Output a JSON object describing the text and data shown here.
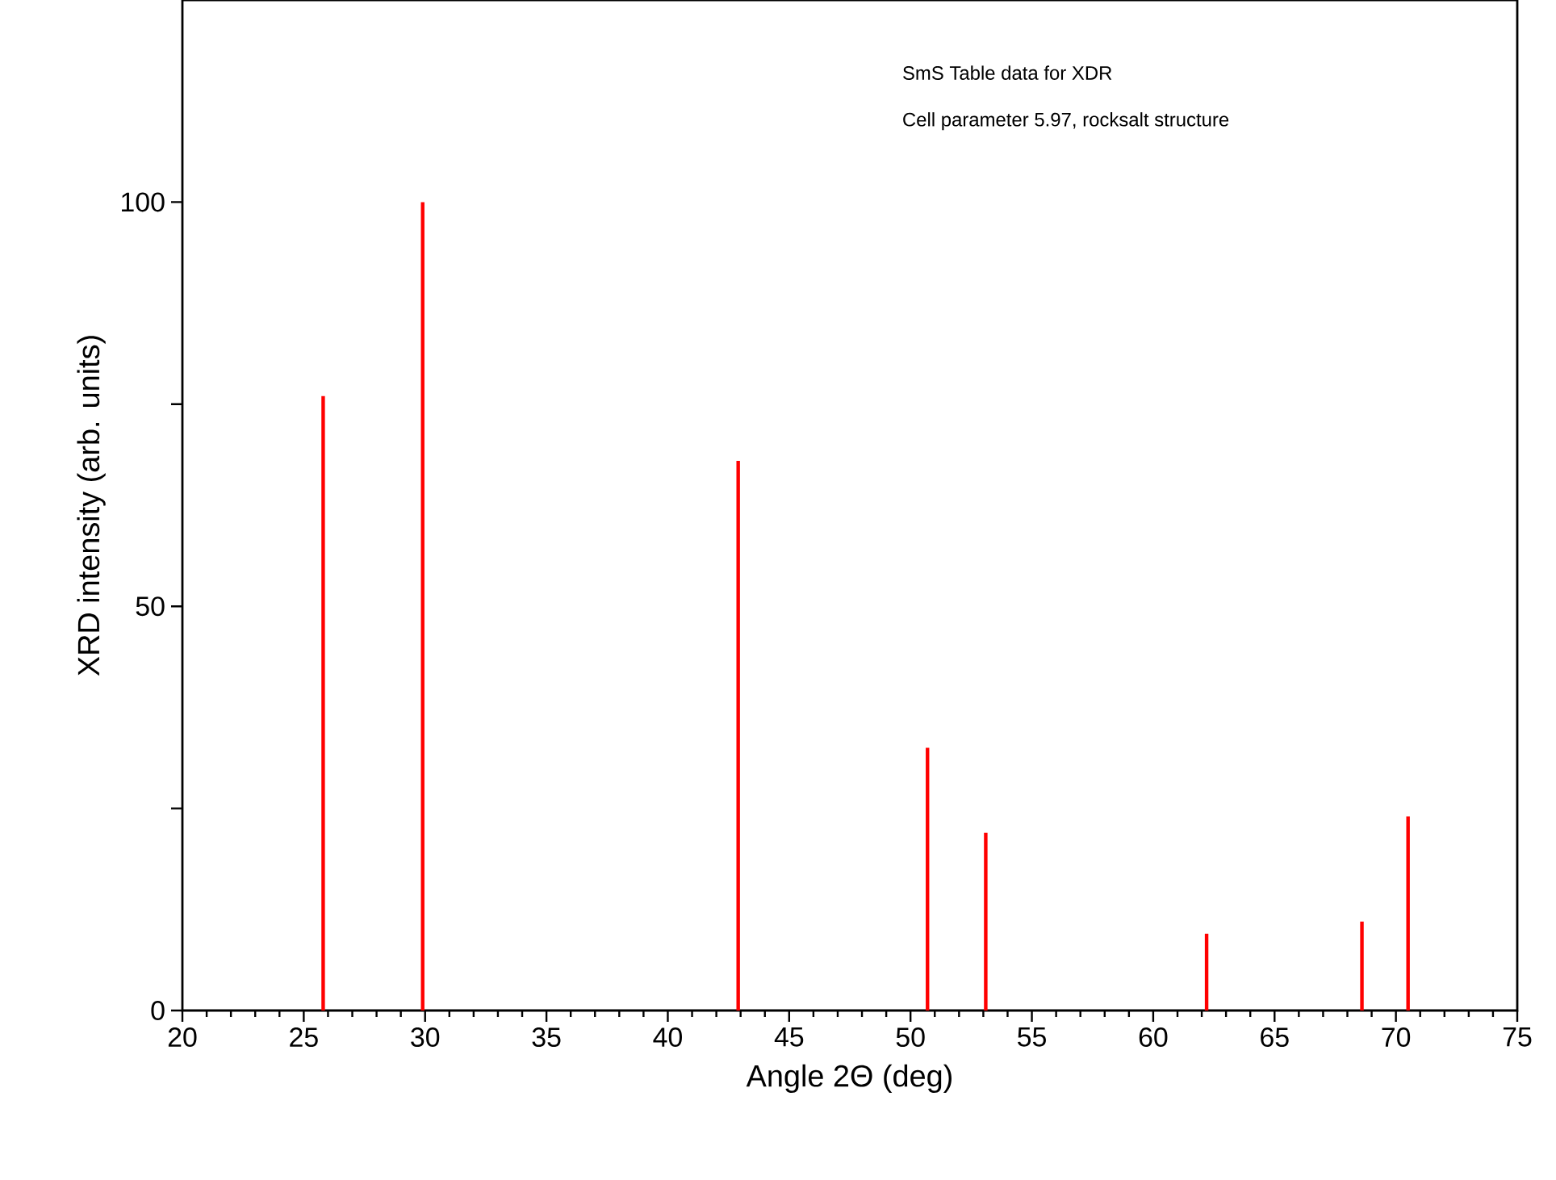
{
  "chart_data": {
    "type": "bar",
    "xlabel": "Angle 2Θ (deg)",
    "ylabel": "XRD intensity (arb. units)",
    "annotations": [
      "SmS Table data for XDR",
      "Cell parameter 5.97, rocksalt structure"
    ],
    "x": [
      25.8,
      29.9,
      42.9,
      50.7,
      53.1,
      62.2,
      68.6,
      70.5
    ],
    "values": [
      76,
      100,
      68,
      32.5,
      22,
      9.5,
      11,
      24
    ],
    "color": "#ff0000",
    "xlim": [
      20,
      75
    ],
    "xticks": [
      20,
      25,
      30,
      35,
      40,
      45,
      50,
      55,
      60,
      65,
      70,
      75
    ],
    "ylim": [
      0,
      125
    ],
    "yticks": [
      0,
      {
        "value": 25,
        "label": null
      },
      50,
      {
        "value": 75,
        "label": null
      },
      100
    ]
  }
}
